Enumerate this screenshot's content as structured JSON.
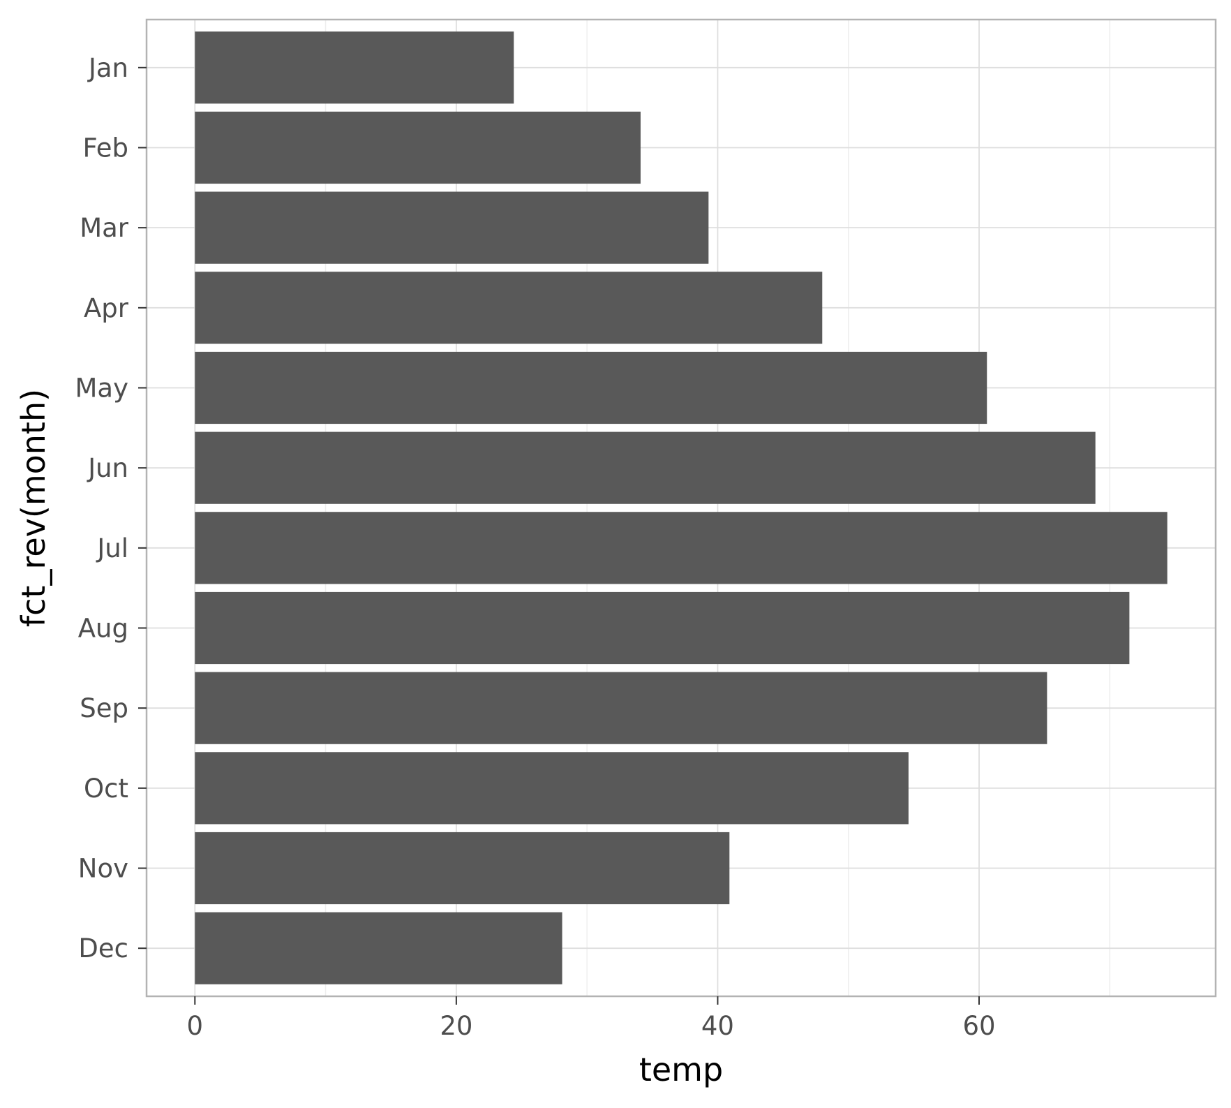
{
  "chart_data": {
    "type": "bar",
    "orientation": "horizontal",
    "categories": [
      "Jan",
      "Feb",
      "Mar",
      "Apr",
      "May",
      "Jun",
      "Jul",
      "Aug",
      "Sep",
      "Oct",
      "Nov",
      "Dec"
    ],
    "values": [
      24.4,
      34.1,
      39.3,
      48.0,
      60.6,
      68.9,
      74.4,
      71.5,
      65.2,
      54.6,
      40.9,
      28.1
    ],
    "xlabel": "temp",
    "ylabel": "fct_rev(month)",
    "xlim": [
      -3.7,
      78.1
    ],
    "xticks": [
      0,
      20,
      40,
      60
    ],
    "xtick_labels": [
      "0",
      "20",
      "40",
      "60"
    ],
    "grid": true,
    "colors": {
      "bar": "#595959",
      "panel_border": "#b3b3b3",
      "grid_major": "#dedede",
      "grid_minor": "#eeeeee",
      "tick_text": "#4d4d4d",
      "axis_title": "#000000"
    }
  }
}
